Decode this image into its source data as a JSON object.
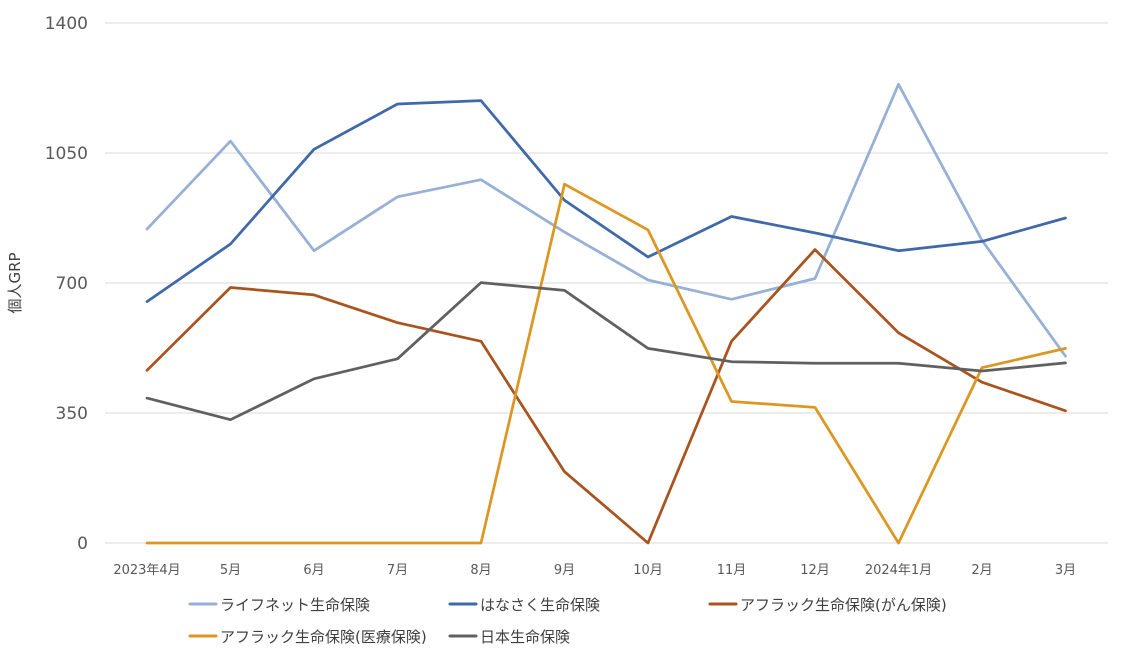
{
  "chart_data": {
    "type": "line",
    "ylabel": "個人GRP",
    "ylim": [
      0,
      1400
    ],
    "yticks": [
      0,
      350,
      700,
      1050,
      1400
    ],
    "grid": true,
    "legend_position": "bottom",
    "categories": [
      "2023年4月",
      "5月",
      "6月",
      "7月",
      "8月",
      "9月",
      "10月",
      "11月",
      "12月",
      "2024年1月",
      "2月",
      "3月"
    ],
    "series": [
      {
        "name": "ライフネット生命保険",
        "color": "#97B0D6",
        "values": [
          845,
          1082,
          787,
          932,
          978,
          837,
          708,
          656,
          712,
          1235,
          815,
          503
        ]
      },
      {
        "name": "はなさく生命保険",
        "color": "#3F69A9",
        "values": [
          650,
          805,
          1060,
          1182,
          1191,
          923,
          770,
          879,
          835,
          787,
          812,
          875
        ]
      },
      {
        "name": "アフラック生命保険(がん保険)",
        "color": "#A9541F",
        "values": [
          465,
          688,
          668,
          593,
          543,
          192,
          0,
          543,
          790,
          566,
          433,
          356
        ]
      },
      {
        "name": "アフラック生命保険(医療保険)",
        "color": "#DC9722",
        "values": [
          0,
          0,
          0,
          0,
          0,
          966,
          843,
          381,
          365,
          0,
          472,
          524
        ]
      },
      {
        "name": "日本生命保険",
        "color": "#606060",
        "values": [
          390,
          332,
          442,
          496,
          701,
          680,
          524,
          488,
          484,
          484,
          463,
          485
        ]
      }
    ]
  }
}
